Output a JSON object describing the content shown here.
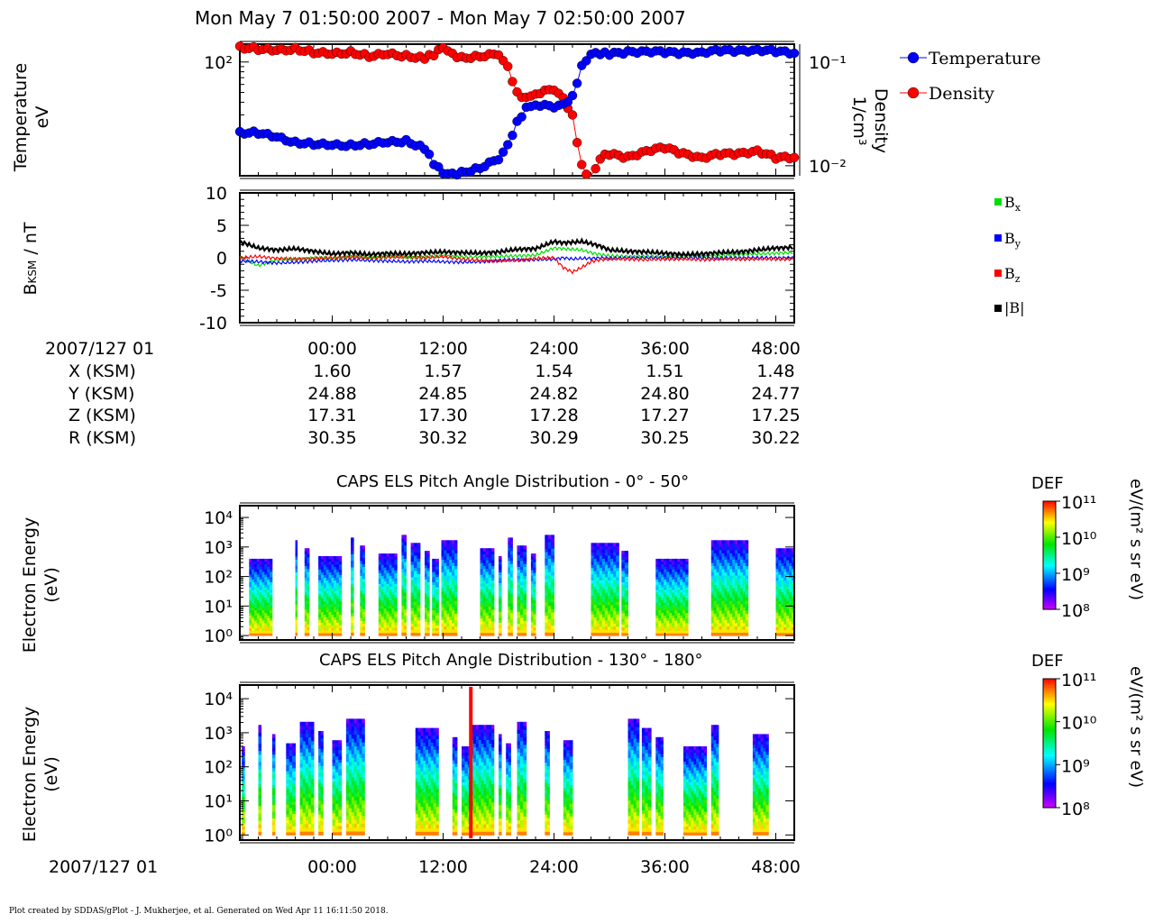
{
  "title": "Mon May 7 01:50:00 2007 - Mon May 7 02:50:00 2007",
  "footer": "Plot created by SDDAS/gPlot - J. Mukherjee, et al.  Generated on Wed Apr 11 16:11:50 2018.",
  "date_label": "2007/127 01",
  "ephemeris": {
    "time_labels": [
      "00:00",
      "12:00",
      "24:00",
      "36:00",
      "48:00"
    ],
    "rows": [
      {
        "label": "X (KSM)",
        "values": [
          "1.60",
          "1.57",
          "1.54",
          "1.51",
          "1.48"
        ]
      },
      {
        "label": "Y (KSM)",
        "values": [
          "24.88",
          "24.85",
          "24.82",
          "24.80",
          "24.77"
        ]
      },
      {
        "label": "Z (KSM)",
        "values": [
          "17.31",
          "17.30",
          "17.28",
          "17.27",
          "17.25"
        ]
      },
      {
        "label": "R (KSM)",
        "values": [
          "30.35",
          "30.32",
          "30.29",
          "30.25",
          "30.22"
        ]
      }
    ]
  },
  "colors": {
    "temperature": "#0000ff",
    "density": "#ff0000",
    "bx": "#00dd00",
    "by": "#0000ff",
    "bz": "#ff0000",
    "bmag": "#000000"
  },
  "chart_data": [
    {
      "type": "scatter",
      "id": "moments",
      "ylabel_left": [
        "Temperature",
        "eV"
      ],
      "ylabel_right": [
        "Density",
        "1/cm³"
      ],
      "yscale": "log",
      "left_ticks": [
        "10²"
      ],
      "right_ticks": [
        "10⁻¹",
        "10⁻²"
      ],
      "legend": "top-right",
      "x_ticks": [
        "00:00",
        "12:00",
        "24:00",
        "36:00",
        "48:00"
      ],
      "x_tick_values": [
        0,
        12,
        24,
        36,
        48
      ],
      "xlim": [
        -10,
        50
      ],
      "series": [
        {
          "name": "Temperature",
          "unit": "eV",
          "ylim": [
            7.5,
            150
          ],
          "x": [
            -10,
            -8,
            -6,
            -4,
            -2,
            0,
            2,
            4,
            6,
            8,
            10,
            11,
            12,
            13,
            14,
            16,
            18,
            19,
            20,
            21,
            22,
            24,
            25,
            26,
            27,
            28,
            29,
            30,
            32,
            34,
            36,
            38,
            40,
            42,
            44,
            46,
            48,
            50
          ],
          "y": [
            20,
            20,
            18,
            16,
            15.5,
            15,
            15,
            15.5,
            16,
            16.5,
            14,
            10,
            8,
            7.8,
            8,
            9,
            11,
            15,
            25,
            35,
            38,
            36,
            38,
            45,
            90,
            120,
            122,
            120,
            125,
            128,
            125,
            122,
            125,
            130,
            128,
            132,
            128,
            122
          ]
        },
        {
          "name": "Density",
          "unit": "1/cm³",
          "ylim": [
            0.008,
            0.15
          ],
          "x": [
            -10,
            -8,
            -6,
            -4,
            -2,
            0,
            2,
            4,
            6,
            8,
            10,
            11,
            12,
            13,
            14,
            16,
            18,
            19,
            20,
            21,
            22,
            24,
            25,
            26,
            27,
            28,
            29,
            30,
            32,
            34,
            36,
            38,
            40,
            42,
            44,
            46,
            48,
            50
          ],
          "y": [
            0.14,
            0.135,
            0.13,
            0.135,
            0.125,
            0.12,
            0.125,
            0.115,
            0.12,
            0.115,
            0.11,
            0.12,
            0.14,
            0.12,
            0.11,
            0.115,
            0.12,
            0.09,
            0.05,
            0.045,
            0.05,
            0.055,
            0.045,
            0.03,
            0.01,
            0.007,
            0.012,
            0.013,
            0.012,
            0.014,
            0.015,
            0.013,
            0.012,
            0.013,
            0.013,
            0.014,
            0.012,
            0.012
          ]
        }
      ]
    },
    {
      "type": "line",
      "id": "magnetic",
      "ylabel": "BKSM / nT",
      "ylim": [
        -10,
        10
      ],
      "y_ticks": [
        10,
        5,
        0,
        -5,
        -10
      ],
      "xlim": [
        -10,
        50
      ],
      "legend": "right",
      "x": [
        -10,
        -8,
        -6,
        -4,
        -2,
        0,
        2,
        4,
        6,
        8,
        10,
        12,
        14,
        16,
        18,
        20,
        22,
        24,
        25,
        26,
        27,
        28,
        29,
        30,
        32,
        34,
        36,
        38,
        40,
        42,
        44,
        46,
        48,
        50
      ],
      "series": [
        {
          "name": "Bx",
          "values": [
            0,
            -1.2,
            -0.3,
            -0.2,
            0,
            -0.1,
            0.2,
            0,
            0.2,
            0.1,
            0.1,
            0.3,
            0.1,
            0.1,
            0.2,
            0.3,
            0.4,
            1.5,
            1.4,
            1.3,
            1.2,
            0.8,
            0.5,
            0.3,
            0.2,
            0.2,
            0.1,
            0.3,
            0.2,
            0.3,
            0.5,
            0.6,
            0.7,
            0.8
          ]
        },
        {
          "name": "By",
          "values": [
            -0.5,
            -0.6,
            -0.8,
            -0.7,
            -0.5,
            -0.4,
            -0.3,
            -0.4,
            -0.5,
            -0.6,
            -0.5,
            -0.6,
            -0.7,
            -0.6,
            -0.4,
            -0.3,
            -0.3,
            -0.2,
            0,
            -0.2,
            -0.1,
            -0.1,
            0,
            -0.1,
            0,
            0,
            0,
            0,
            0,
            -0.1,
            0,
            0,
            0,
            0
          ]
        },
        {
          "name": "Bz",
          "values": [
            0,
            0.2,
            -0.1,
            -0.2,
            -0.1,
            0,
            0.1,
            0,
            0.1,
            0.1,
            0,
            0.2,
            -0.2,
            -0.4,
            -0.5,
            -0.4,
            -0.1,
            0,
            -1.5,
            -2.2,
            -1.5,
            -0.6,
            -0.3,
            -0.2,
            -0.2,
            -0.3,
            -0.2,
            -0.2,
            -0.3,
            -0.2,
            -0.2,
            -0.2,
            -0.2,
            -0.2
          ]
        },
        {
          "name": "|B|",
          "values": [
            2.5,
            1.5,
            1.2,
            1.4,
            1.0,
            0.6,
            0.8,
            0.5,
            0.7,
            0.6,
            0.8,
            0.9,
            0.8,
            0.7,
            0.9,
            1.3,
            1.4,
            2.5,
            2.3,
            2.4,
            2.5,
            2.2,
            1.8,
            1.2,
            1.0,
            0.9,
            0.7,
            0.5,
            0.6,
            0.8,
            0.9,
            1.2,
            1.5,
            1.6
          ]
        }
      ],
      "legend_labels": [
        "Bx",
        "By",
        "Bz",
        "|B|"
      ]
    },
    {
      "type": "heatmap",
      "id": "els_0_50",
      "title": "CAPS ELS Pitch Angle Distribution - 0° - 50°",
      "ylabel": [
        "Electron Energy",
        "(eV)"
      ],
      "y_ticks": [
        "10⁴",
        "10³",
        "10²",
        "10¹",
        "10⁰"
      ],
      "colorbar": {
        "label": "DEF",
        "unit": "eV/(m² s sr eV)",
        "ticks": [
          "10¹¹",
          "10¹⁰",
          "10⁹",
          "10⁸"
        ],
        "range_log10": [
          8,
          11
        ]
      },
      "xlim": [
        -10,
        50
      ],
      "segments": [
        [
          -9,
          -6.5
        ],
        [
          -4,
          -3.8
        ],
        [
          -3,
          -2.5
        ],
        [
          -1.5,
          1
        ],
        [
          2,
          2.3
        ],
        [
          3,
          3.5
        ],
        [
          5,
          7
        ],
        [
          7.5,
          8
        ],
        [
          8.5,
          9.5
        ],
        [
          10,
          10.5
        ],
        [
          10.8,
          11.5
        ],
        [
          11.8,
          13.5
        ],
        [
          16,
          17.5
        ],
        [
          18,
          18.3
        ],
        [
          19,
          19.5
        ],
        [
          20,
          21
        ],
        [
          21.5,
          22
        ],
        [
          23,
          24
        ],
        [
          28,
          31
        ],
        [
          31.3,
          32
        ],
        [
          35,
          38.5
        ],
        [
          41,
          45
        ],
        [
          48,
          50
        ]
      ]
    },
    {
      "type": "heatmap",
      "id": "els_130_180",
      "title": "CAPS ELS Pitch Angle Distribution - 130° - 180°",
      "ylabel": [
        "Electron Energy",
        "(eV)"
      ],
      "y_ticks": [
        "10⁴",
        "10³",
        "10²",
        "10¹",
        "10⁰"
      ],
      "colorbar": {
        "label": "DEF",
        "unit": "eV/(m² s sr eV)",
        "ticks": [
          "10¹¹",
          "10¹⁰",
          "10⁹",
          "10⁸"
        ],
        "range_log10": [
          8,
          11
        ]
      },
      "xlim": [
        -10,
        50
      ],
      "x_ticks": [
        "00:00",
        "12:00",
        "24:00",
        "36:00",
        "48:00"
      ],
      "segments": [
        [
          -9.8,
          -9.5
        ],
        [
          -8,
          -7.7
        ],
        [
          -6.5,
          -6.2
        ],
        [
          -5,
          -4
        ],
        [
          -3.5,
          -2
        ],
        [
          -1.5,
          -1
        ],
        [
          0,
          1
        ],
        [
          1.5,
          3.5
        ],
        [
          9,
          11.5
        ],
        [
          13,
          13.5
        ],
        [
          14,
          15
        ],
        [
          15,
          17.5
        ],
        [
          18,
          18.3
        ],
        [
          18.8,
          19.3
        ],
        [
          20,
          21
        ],
        [
          23,
          23.5
        ],
        [
          25,
          26
        ],
        [
          32,
          33.2
        ],
        [
          33.5,
          34.5
        ],
        [
          35,
          35.8
        ],
        [
          38,
          40.5
        ],
        [
          41,
          41.8
        ],
        [
          45.5,
          47.2
        ]
      ],
      "spike_x": 15
    }
  ]
}
